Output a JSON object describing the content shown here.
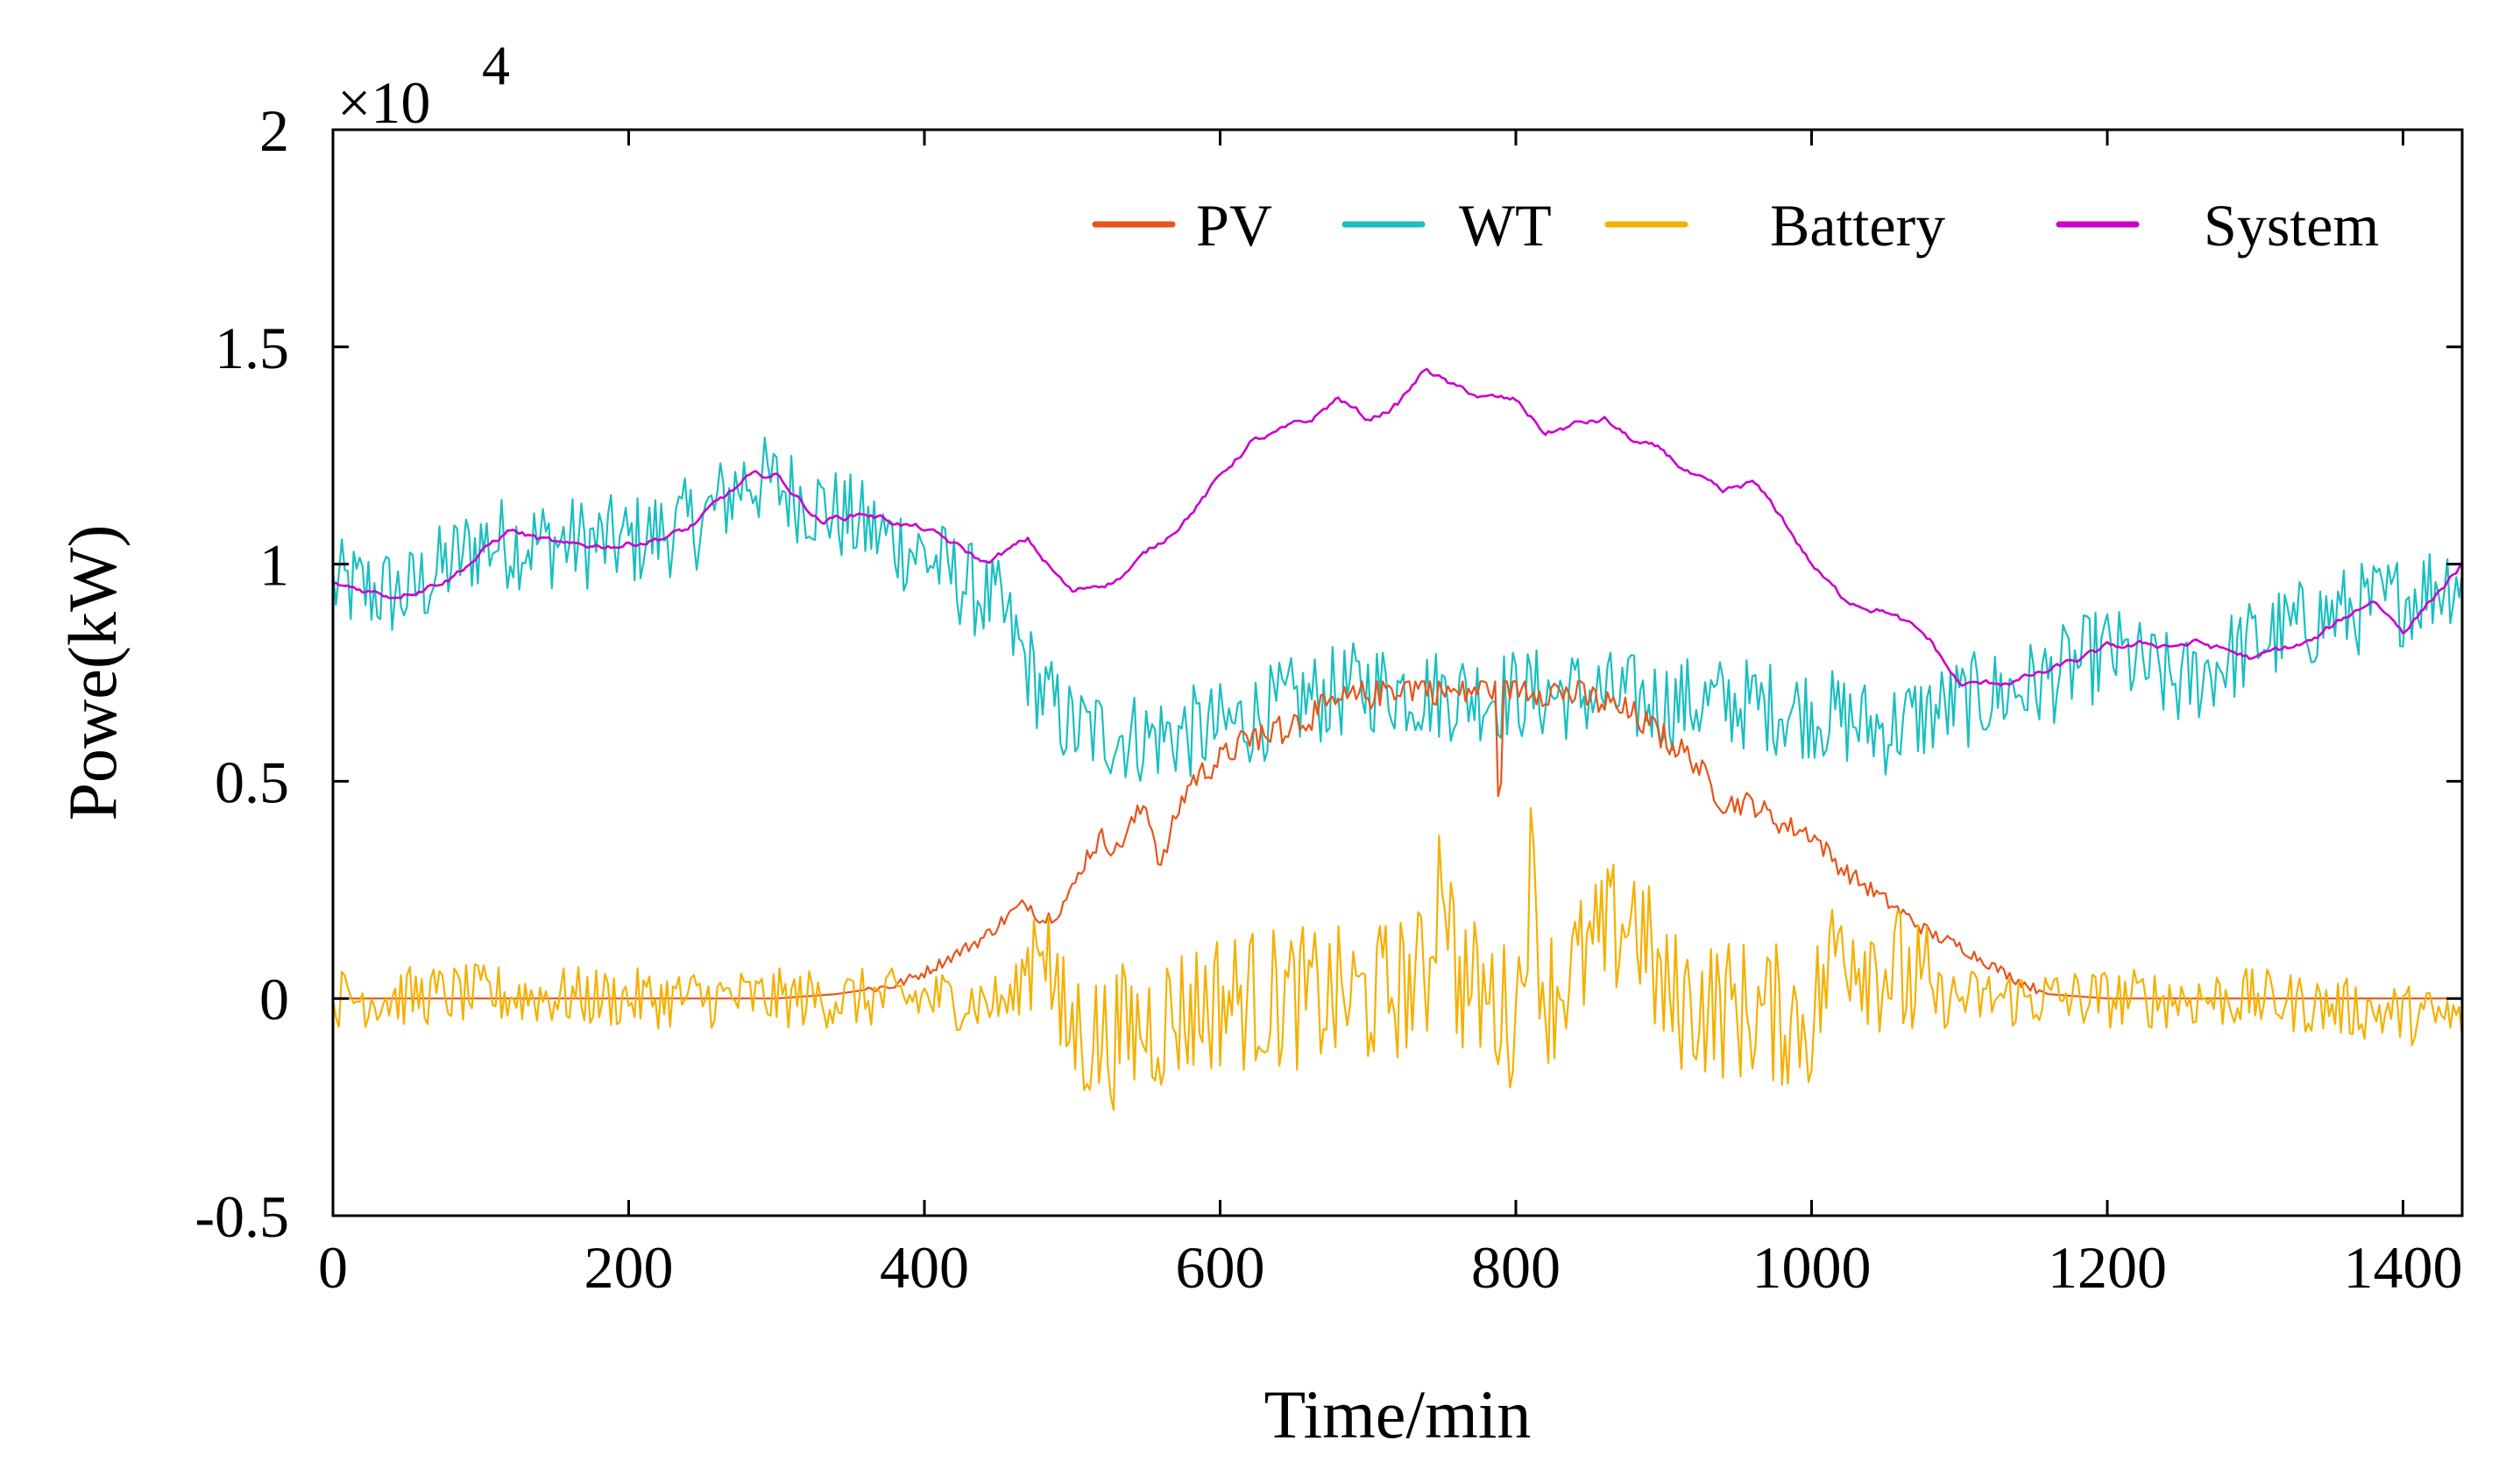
{
  "chart_data": {
    "type": "line",
    "title": "",
    "xlabel": "Time/min",
    "ylabel": "Powe(kW)",
    "xlim": [
      0,
      1440
    ],
    "ylim": [
      -0.5,
      2
    ],
    "y_multiplier": "×10",
    "y_multiplier_exponent": "4",
    "x_ticks": [
      0,
      200,
      400,
      600,
      800,
      1000,
      1200,
      1400
    ],
    "x_tick_labels": [
      "0",
      "200",
      "400",
      "600",
      "800",
      "1000",
      "1200",
      "1400"
    ],
    "y_ticks": [
      -0.5,
      0,
      0.5,
      1,
      1.5,
      2
    ],
    "y_tick_labels": [
      "-0.5",
      "0",
      "0.5",
      "1",
      "1.5",
      "2"
    ],
    "grid": false,
    "legend_position": "top",
    "series": [
      {
        "name": "PV",
        "color": "#E8541A",
        "noise": 0.02,
        "x": [
          0,
          300,
          340,
          380,
          400,
          420,
          440,
          460,
          470,
          480,
          490,
          500,
          510,
          520,
          530,
          540,
          550,
          560,
          570,
          580,
          600,
          620,
          640,
          660,
          680,
          700,
          720,
          740,
          760,
          780,
          800,
          820,
          840,
          860,
          880,
          900,
          920,
          940,
          960,
          980,
          1000,
          1020,
          1040,
          1060,
          1080,
          1100,
          1120,
          1140,
          1160,
          1200,
          1440
        ],
        "values": [
          0,
          0,
          0.01,
          0.03,
          0.06,
          0.1,
          0.14,
          0.2,
          0.22,
          0.18,
          0.2,
          0.25,
          0.33,
          0.37,
          0.34,
          0.4,
          0.45,
          0.3,
          0.42,
          0.5,
          0.55,
          0.6,
          0.62,
          0.65,
          0.68,
          0.7,
          0.72,
          0.72,
          0.7,
          0.72,
          0.72,
          0.71,
          0.7,
          0.68,
          0.65,
          0.6,
          0.55,
          0.45,
          0.45,
          0.4,
          0.38,
          0.3,
          0.25,
          0.2,
          0.15,
          0.12,
          0.08,
          0.04,
          0.01,
          0,
          0
        ]
      },
      {
        "name": "WT",
        "color": "#1ABFC0",
        "noise": 0.11,
        "x": [
          0,
          50,
          100,
          150,
          200,
          250,
          280,
          300,
          350,
          400,
          450,
          480,
          500,
          550,
          600,
          650,
          700,
          750,
          800,
          850,
          900,
          950,
          1000,
          1050,
          1100,
          1150,
          1200,
          1250,
          1300,
          1350,
          1400,
          1440
        ],
        "values": [
          0.95,
          0.93,
          1.05,
          1.05,
          1.05,
          1.1,
          1.2,
          1.18,
          1.1,
          1.02,
          0.9,
          0.7,
          0.62,
          0.6,
          0.62,
          0.68,
          0.72,
          0.7,
          0.7,
          0.7,
          0.68,
          0.68,
          0.66,
          0.62,
          0.68,
          0.72,
          0.8,
          0.72,
          0.82,
          0.88,
          0.92,
          0.98
        ]
      },
      {
        "name": "Battery",
        "color": "#F5B000",
        "noise": 0.07,
        "x": [
          0,
          100,
          200,
          300,
          400,
          460,
          480,
          490,
          520,
          600,
          700,
          740,
          750,
          760,
          800,
          810,
          820,
          880,
          900,
          1000,
          1020,
          1080,
          1100,
          1200,
          1300,
          1440
        ],
        "values": [
          0,
          0.01,
          0,
          0,
          0,
          -0.01,
          0.2,
          -0.05,
          -0.1,
          0,
          0,
          0.05,
          0.35,
          0.05,
          -0.05,
          0.3,
          0,
          0.2,
          0,
          -0.05,
          0.15,
          0,
          0,
          0,
          0,
          -0.05
        ]
      },
      {
        "name": "System",
        "color": "#CC00CC",
        "noise": 0.012,
        "x": [
          0,
          40,
          80,
          120,
          160,
          200,
          240,
          280,
          300,
          330,
          360,
          400,
          440,
          470,
          500,
          530,
          560,
          600,
          620,
          660,
          680,
          700,
          720,
          740,
          760,
          780,
          800,
          820,
          840,
          860,
          880,
          900,
          940,
          960,
          980,
          1000,
          1020,
          1050,
          1080,
          1100,
          1120,
          1160,
          1200,
          1260,
          1300,
          1340,
          1380,
          1400,
          1440
        ],
        "values": [
          0.95,
          0.93,
          0.98,
          1.08,
          1.03,
          1.05,
          1.08,
          1.19,
          1.2,
          1.1,
          1.12,
          1.08,
          1.0,
          1.05,
          0.93,
          0.97,
          1.05,
          1.2,
          1.28,
          1.32,
          1.38,
          1.33,
          1.37,
          1.45,
          1.4,
          1.38,
          1.37,
          1.3,
          1.32,
          1.33,
          1.28,
          1.25,
          1.15,
          1.18,
          1.1,
          1.0,
          0.92,
          0.9,
          0.82,
          0.72,
          0.72,
          0.75,
          0.8,
          0.82,
          0.78,
          0.82,
          0.92,
          0.85,
          1.0
        ]
      }
    ]
  }
}
